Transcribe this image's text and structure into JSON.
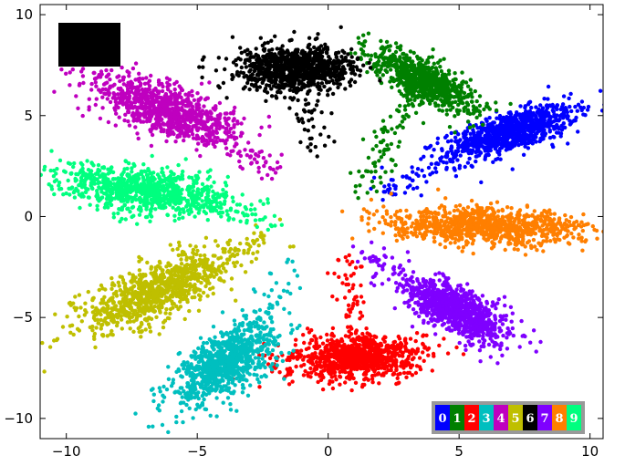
{
  "chart_data": {
    "type": "scatter",
    "title": "",
    "xlabel": "",
    "ylabel": "",
    "xlim": [
      -11,
      10.5
    ],
    "ylim": [
      -11,
      10.5
    ],
    "xticks": [
      -10,
      -5,
      0,
      5,
      10
    ],
    "yticks": [
      -10,
      -5,
      0,
      5,
      10
    ],
    "xtick_labels": [
      "−10",
      "−5",
      "0",
      "5",
      "10"
    ],
    "ytick_labels": [
      "−10",
      "−5",
      "0",
      "5",
      "10"
    ],
    "grid": false,
    "legend_placement": "bottom-right",
    "corner_box": {
      "location": "top-left",
      "color": "#000000"
    },
    "series": [
      {
        "name": "0",
        "color": "#0000ff",
        "center": [
          7.0,
          4.2
        ],
        "spread": [
          1.3,
          0.45
        ],
        "angle_deg": 22,
        "count": 900,
        "tail": {
          "from": [
            6.5,
            4.0
          ],
          "to": [
            2.0,
            1.0
          ],
          "count": 80
        }
      },
      {
        "name": "1",
        "color": "#008000",
        "center": [
          3.6,
          6.8
        ],
        "spread": [
          0.45,
          1.2
        ],
        "angle_deg": 55,
        "count": 750,
        "tail": {
          "from": [
            3.5,
            6.5
          ],
          "to": [
            1.3,
            1.3
          ],
          "count": 90
        }
      },
      {
        "name": "2",
        "color": "#ff0000",
        "center": [
          1.0,
          -7.0
        ],
        "spread": [
          0.55,
          1.3
        ],
        "angle_deg": 95,
        "count": 900,
        "tail": {
          "from": [
            1.0,
            -6.0
          ],
          "to": [
            0.6,
            -2.0
          ],
          "count": 60
        }
      },
      {
        "name": "3",
        "color": "#00bfbf",
        "center": [
          -4.0,
          -7.3
        ],
        "spread": [
          1.2,
          0.6
        ],
        "angle_deg": 45,
        "count": 900,
        "tail": {
          "from": [
            -3.8,
            -7.0
          ],
          "to": [
            -1.2,
            -2.5
          ],
          "count": 60
        }
      },
      {
        "name": "4",
        "color": "#bf00bf",
        "center": [
          -6.2,
          5.3
        ],
        "spread": [
          1.5,
          0.6
        ],
        "angle_deg": -28,
        "count": 900,
        "tail": {
          "from": [
            -5.5,
            5.0
          ],
          "to": [
            -2.0,
            2.2
          ],
          "count": 60
        }
      },
      {
        "name": "5",
        "color": "#bfbf00",
        "center": [
          -6.6,
          -3.7
        ],
        "spread": [
          1.6,
          0.6
        ],
        "angle_deg": 30,
        "count": 900,
        "tail": {
          "from": [
            -6.0,
            -3.5
          ],
          "to": [
            -2.0,
            -0.8
          ],
          "count": 80
        }
      },
      {
        "name": "6",
        "color": "#000000",
        "center": [
          -1.3,
          7.3
        ],
        "spread": [
          0.55,
          1.1
        ],
        "angle_deg": 90,
        "count": 900,
        "tail": {
          "from": [
            -1.3,
            7.0
          ],
          "to": [
            -0.2,
            3.0
          ],
          "count": 50
        }
      },
      {
        "name": "7",
        "color": "#7f00ff",
        "center": [
          5.0,
          -4.7
        ],
        "spread": [
          1.1,
          0.5
        ],
        "angle_deg": -35,
        "count": 900,
        "tail": {
          "from": [
            4.5,
            -4.3
          ],
          "to": [
            1.0,
            -1.5
          ],
          "count": 80
        }
      },
      {
        "name": "8",
        "color": "#ff7f00",
        "center": [
          6.2,
          -0.5
        ],
        "spread": [
          1.8,
          0.45
        ],
        "angle_deg": -3,
        "count": 900,
        "tail": {
          "from": [
            5.5,
            -0.4
          ],
          "to": [
            1.5,
            -0.3
          ],
          "count": 60
        }
      },
      {
        "name": "9",
        "color": "#00ff7f",
        "center": [
          -7.0,
          1.3
        ],
        "spread": [
          1.6,
          0.55
        ],
        "angle_deg": -10,
        "count": 900,
        "tail": {
          "from": [
            -6.5,
            1.2
          ],
          "to": [
            -2.0,
            -0.3
          ],
          "count": 70
        }
      }
    ]
  }
}
